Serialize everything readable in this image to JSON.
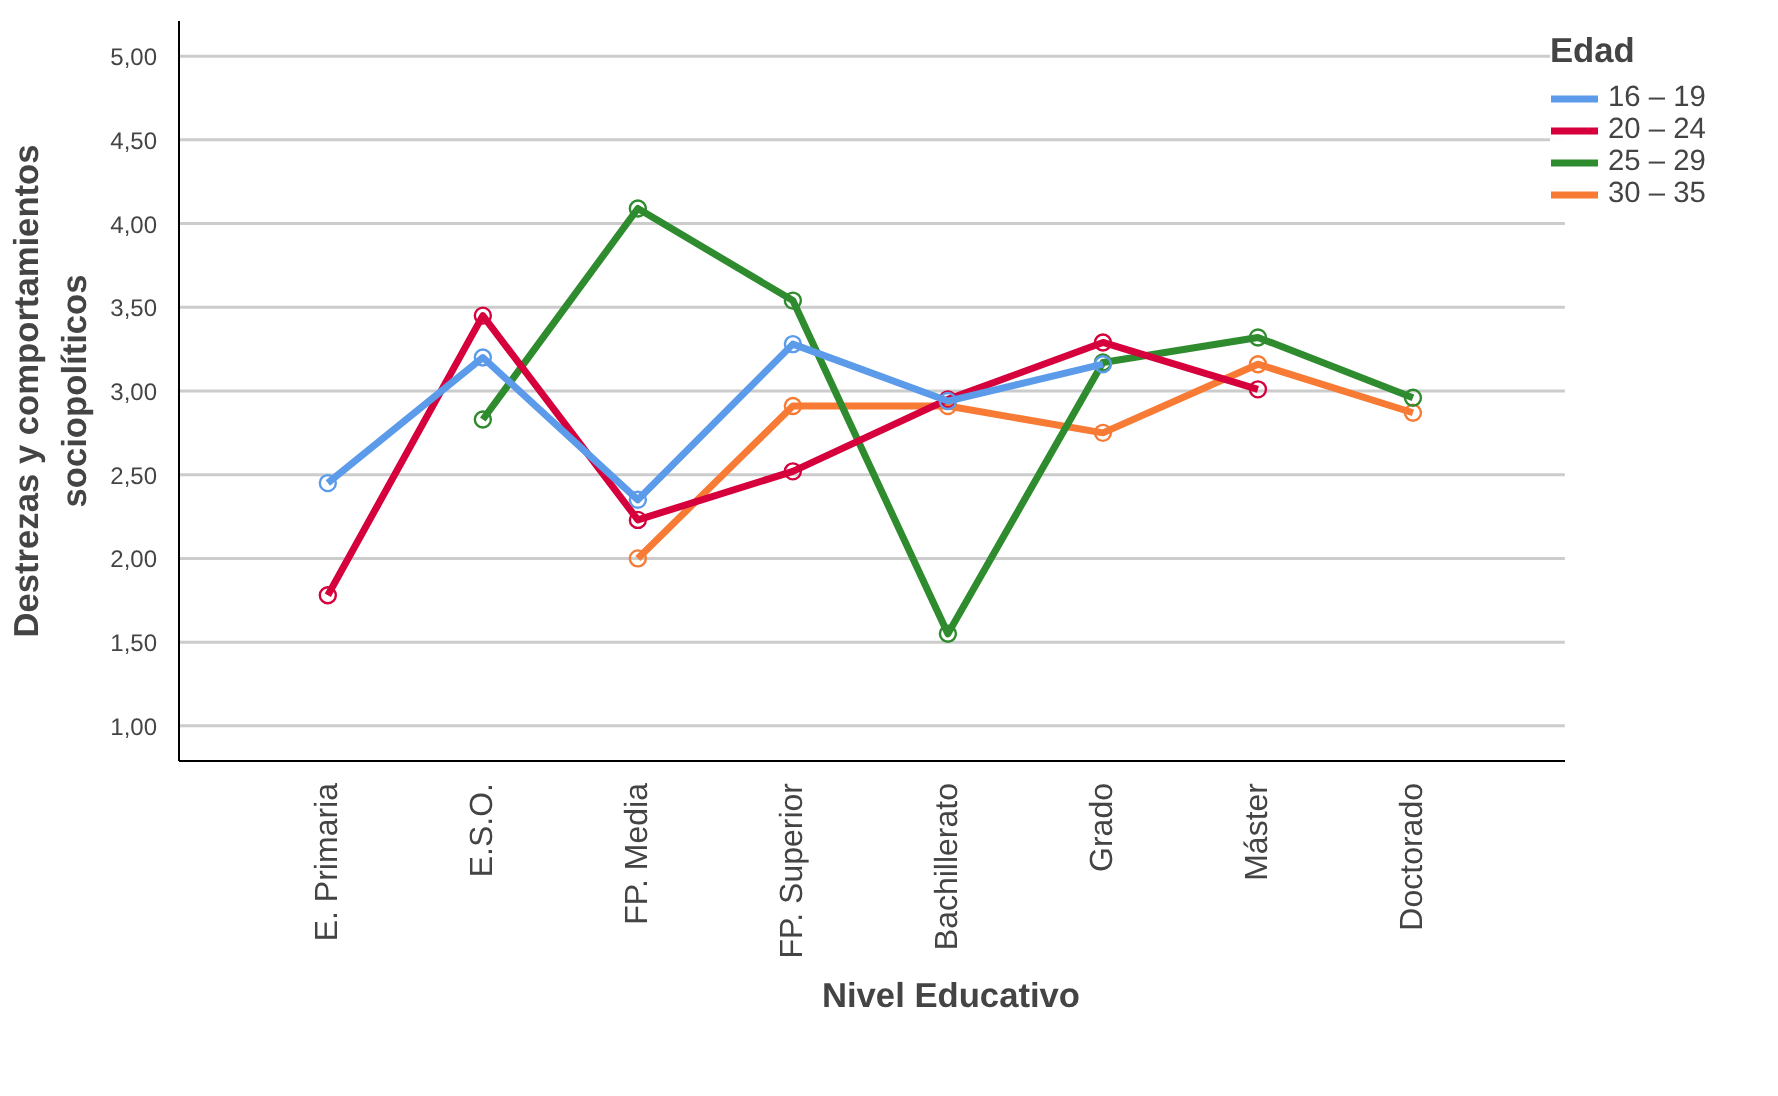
{
  "chart_data": {
    "type": "line",
    "xlabel": "Nivel Educativo",
    "ylabel": "Destrezas y comportamientos\nsociopolíticos",
    "legend_title": "Edad",
    "categories": [
      "E. Primaria",
      "E.S.O.",
      "FP. Media",
      "FP. Superior",
      "Bachillerato",
      "Grado",
      "Máster",
      "Doctorado"
    ],
    "series": [
      {
        "name": "16 – 19",
        "color": "#5b9bea",
        "values": [
          2.45,
          3.2,
          2.35,
          3.28,
          2.94,
          3.16,
          null,
          null
        ]
      },
      {
        "name": "20 – 24",
        "color": "#d5003c",
        "values": [
          1.78,
          3.45,
          2.23,
          2.52,
          2.95,
          3.29,
          3.01,
          null
        ]
      },
      {
        "name": "25 – 29",
        "color": "#2e8b2e",
        "values": [
          null,
          2.83,
          4.09,
          3.54,
          1.55,
          3.17,
          3.32,
          2.96
        ]
      },
      {
        "name": "30 – 35",
        "color": "#f77b35",
        "values": [
          null,
          null,
          2.0,
          2.91,
          2.91,
          2.75,
          3.16,
          2.87
        ]
      }
    ],
    "ylim": [
      0.79,
      5.21
    ],
    "yticks": [
      {
        "value": 1,
        "label": "1,00"
      },
      {
        "value": 1.5,
        "label": "1,50"
      },
      {
        "value": 2,
        "label": "2,00"
      },
      {
        "value": 2.5,
        "label": "2,50"
      },
      {
        "value": 3,
        "label": "3,00"
      },
      {
        "value": 3.5,
        "label": "3,50"
      },
      {
        "value": 4,
        "label": "4,00"
      },
      {
        "value": 4.5,
        "label": "4,50"
      },
      {
        "value": 5,
        "label": "5,00"
      }
    ],
    "grid": "y",
    "legend": "top right",
    "marker": "circle",
    "line_style": "solid"
  }
}
